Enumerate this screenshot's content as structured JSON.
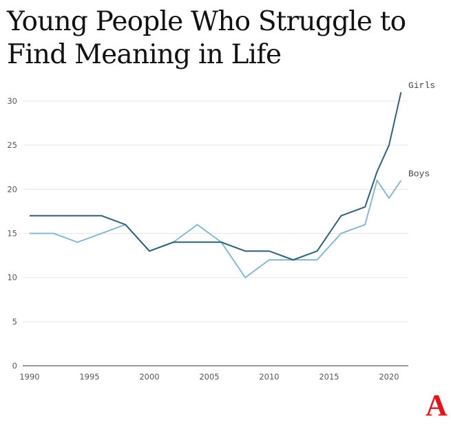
{
  "title": "Young People Who Struggle to Find Meaning in Life",
  "logo": "A",
  "colors": {
    "girls": "#2e5f78",
    "boys": "#86b8d2",
    "grid": "#e6e6e6",
    "axis": "#777777",
    "logo": "#e4141c"
  },
  "chart_data": {
    "type": "line",
    "title": "Young People Who Struggle to Find Meaning in Life",
    "xlabel": "",
    "ylabel": "",
    "xlim": [
      1990,
      2021
    ],
    "ylim": [
      0,
      30
    ],
    "grid": true,
    "legend_position": "inline-right",
    "x_ticks": [
      1990,
      1995,
      2000,
      2005,
      2010,
      2015,
      2020
    ],
    "y_ticks": [
      0,
      5,
      10,
      15,
      20,
      25,
      30
    ],
    "x": [
      1990,
      1992,
      1994,
      1996,
      1998,
      2000,
      2002,
      2004,
      2006,
      2008,
      2010,
      2012,
      2014,
      2016,
      2018,
      2019,
      2020,
      2021
    ],
    "series": [
      {
        "name": "Girls",
        "values": [
          17,
          17,
          17,
          17,
          16,
          13,
          14,
          14,
          14,
          13,
          13,
          12,
          13,
          17,
          18,
          22,
          25,
          31
        ]
      },
      {
        "name": "Boys",
        "values": [
          15,
          15,
          14,
          15,
          16,
          13,
          14,
          16,
          14,
          10,
          12,
          12,
          12,
          15,
          16,
          21,
          19,
          21
        ]
      }
    ]
  }
}
